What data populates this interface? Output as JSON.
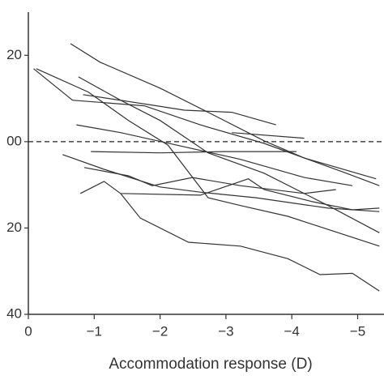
{
  "chart_data": {
    "type": "line",
    "xlabel": "Accommodation response (D)",
    "xlim": [
      0,
      -5.4
    ],
    "ylim": [
      -40,
      30
    ],
    "xticks": [
      0,
      {
        "value": -1,
        "label": "−1"
      },
      {
        "value": -2,
        "label": "−2"
      },
      {
        "value": -3,
        "label": "−3"
      },
      {
        "value": -4,
        "label": "−4"
      },
      {
        "value": -5,
        "label": "−5"
      }
    ],
    "yticks": [
      20,
      {
        "value": 0,
        "label": "00"
      },
      {
        "value": -20,
        "label": "20"
      },
      {
        "value": -40,
        "label": "40"
      }
    ],
    "reference_line": 0,
    "color": "#333333",
    "series": [
      {
        "x": [
          -0.64,
          -1.09,
          -2.0,
          -2.73,
          -3.58,
          -4.19,
          -5.28
        ],
        "values": [
          22.7,
          18.4,
          12.4,
          6.8,
          0.2,
          -3.8,
          -8.6
        ]
      },
      {
        "x": [
          -0.08,
          -0.67,
          -1.76,
          -2.61,
          -3.58,
          -4.79,
          -5.33
        ],
        "values": [
          16.9,
          9.6,
          8.3,
          3.9,
          -0.4,
          -7.1,
          -10.2
        ]
      },
      {
        "x": [
          -0.12,
          -0.91,
          -1.52,
          -2.12,
          -2.73,
          -3.22,
          -3.94,
          -5.33
        ],
        "values": [
          16.9,
          11.5,
          4.9,
          -0.8,
          -13.0,
          -14.8,
          -17.3,
          -24.2
        ]
      },
      {
        "x": [
          -0.76,
          -1.4,
          -2.0,
          -2.73,
          -3.58,
          -4.55,
          -5.33
        ],
        "values": [
          15.0,
          9.6,
          4.9,
          -2.6,
          -7.3,
          -14.8,
          -21.1
        ]
      },
      {
        "x": [
          -0.83,
          -1.82,
          -2.37,
          -3.09,
          -3.76
        ],
        "values": [
          10.9,
          8.6,
          7.3,
          6.8,
          3.9
        ]
      },
      {
        "x": [
          -3.09,
          -4.19
        ],
        "values": [
          2.1,
          0.8
        ]
      },
      {
        "x": [
          -0.73,
          -1.4,
          -2.25,
          -3.22,
          -4.19,
          -4.92
        ],
        "values": [
          3.9,
          2.1,
          -0.8,
          -4.1,
          -8.3,
          -10.2
        ]
      },
      {
        "x": [
          -0.95,
          -2.0,
          -2.97,
          -4.07
        ],
        "values": [
          -2.3,
          -2.6,
          -2.3,
          -2.3
        ]
      },
      {
        "x": [
          -0.52,
          -1.15,
          -2.0,
          -2.61,
          -3.46,
          -4.55,
          -5.33
        ],
        "values": [
          -3.0,
          -6.4,
          -10.5,
          -11.7,
          -13.0,
          -15.4,
          -16.2
        ]
      },
      {
        "x": [
          -0.85,
          -1.52,
          -1.88,
          -2.49,
          -3.22,
          -4.19,
          -4.67
        ],
        "values": [
          -6.0,
          -7.9,
          -10.2,
          -8.3,
          -10.2,
          -12.0,
          -11.1
        ]
      },
      {
        "x": [
          -0.79,
          -1.15,
          -1.4,
          -2.61,
          -3.34,
          -3.58,
          -4.31,
          -4.92,
          -5.33
        ],
        "values": [
          -12.0,
          -9.2,
          -12.0,
          -12.4,
          -8.6,
          -11.1,
          -13.9,
          -15.8,
          -15.4
        ]
      },
      {
        "x": [
          -1.4,
          -1.7,
          -2.43,
          -3.22,
          -3.94,
          -4.43,
          -4.92,
          -5.33
        ],
        "values": [
          -12.0,
          -17.7,
          -23.3,
          -24.2,
          -27.1,
          -30.8,
          -30.5,
          -34.6
        ]
      }
    ]
  }
}
